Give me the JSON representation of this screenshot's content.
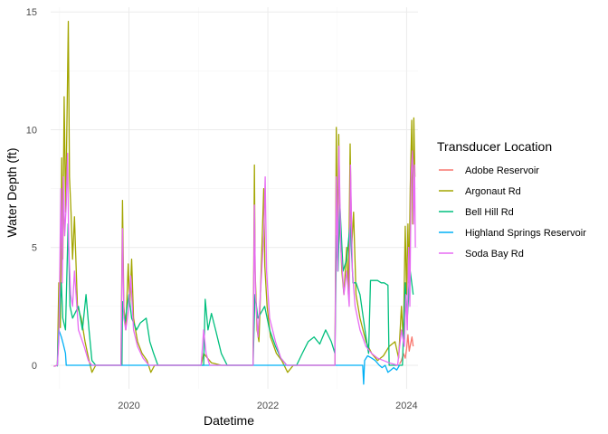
{
  "chart_data": {
    "type": "line",
    "title": "",
    "xlabel": "Datetime",
    "ylabel": "Water Depth (ft)",
    "xlim": [
      "2018-11-15",
      "2024-03-01"
    ],
    "ylim": [
      -1,
      15.2
    ],
    "x_ticks": [
      "2020-01-01",
      "2022-01-01",
      "2024-01-01"
    ],
    "x_tick_labels": [
      "2020",
      "2022",
      "2024"
    ],
    "y_ticks": [
      0,
      5,
      10,
      15
    ],
    "y_tick_labels": [
      "0",
      "5",
      "10",
      "15"
    ],
    "grid": true,
    "legend": {
      "title": "Transducer Location",
      "position": "right"
    },
    "series": [
      {
        "name": "Adobe Reservoir",
        "color": "#F8766D",
        "points": [
          [
            "2023-11-25",
            0.05
          ],
          [
            "2023-12-05",
            0.2
          ],
          [
            "2023-12-15",
            0.5
          ],
          [
            "2023-12-25",
            0.3
          ],
          [
            "2024-01-01",
            0.7
          ],
          [
            "2024-01-08",
            1.3
          ],
          [
            "2024-01-15",
            0.6
          ],
          [
            "2024-01-22",
            0.9
          ],
          [
            "2024-01-29",
            1.2
          ],
          [
            "2024-02-05",
            0.8
          ]
        ]
      },
      {
        "name": "Argonaut Rd",
        "color": "#A3A500",
        "points": [
          [
            "2018-12-01",
            -0.05
          ],
          [
            "2018-12-20",
            0.0
          ],
          [
            "2018-12-28",
            3.5
          ],
          [
            "2019-01-05",
            1.6
          ],
          [
            "2019-01-12",
            8.8
          ],
          [
            "2019-01-18",
            4.5
          ],
          [
            "2019-01-25",
            11.4
          ],
          [
            "2019-02-02",
            6.5
          ],
          [
            "2019-02-10",
            11.2
          ],
          [
            "2019-02-16",
            14.6
          ],
          [
            "2019-02-22",
            8.0
          ],
          [
            "2019-03-02",
            6.5
          ],
          [
            "2019-03-10",
            4.5
          ],
          [
            "2019-03-20",
            6.3
          ],
          [
            "2019-04-05",
            2.5
          ],
          [
            "2019-04-25",
            2.0
          ],
          [
            "2019-05-15",
            1.0
          ],
          [
            "2019-06-05",
            0.2
          ],
          [
            "2019-06-20",
            -0.3
          ],
          [
            "2019-07-10",
            0.0
          ],
          [
            "2019-11-20",
            0.0
          ],
          [
            "2019-11-28",
            7.0
          ],
          [
            "2019-12-05",
            2.5
          ],
          [
            "2019-12-15",
            1.5
          ],
          [
            "2019-12-28",
            4.3
          ],
          [
            "2020-01-05",
            2.5
          ],
          [
            "2020-01-15",
            4.5
          ],
          [
            "2020-01-25",
            2.0
          ],
          [
            "2020-02-15",
            1.0
          ],
          [
            "2020-03-10",
            0.5
          ],
          [
            "2020-04-05",
            0.2
          ],
          [
            "2020-04-25",
            -0.3
          ],
          [
            "2020-05-15",
            0.0
          ],
          [
            "2020-12-20",
            0.0
          ],
          [
            "2021-01-15",
            0.0
          ],
          [
            "2021-01-28",
            0.5
          ],
          [
            "2021-03-10",
            0.1
          ],
          [
            "2021-05-01",
            0.0
          ],
          [
            "2021-10-15",
            0.0
          ],
          [
            "2021-10-22",
            8.5
          ],
          [
            "2021-10-26",
            4.0
          ],
          [
            "2021-11-05",
            1.5
          ],
          [
            "2021-11-15",
            1.0
          ],
          [
            "2021-12-10",
            7.5
          ],
          [
            "2021-12-16",
            4.2
          ],
          [
            "2021-12-28",
            2.5
          ],
          [
            "2022-01-15",
            1.2
          ],
          [
            "2022-02-15",
            0.5
          ],
          [
            "2022-03-15",
            0.2
          ],
          [
            "2022-04-15",
            -0.3
          ],
          [
            "2022-05-15",
            0.0
          ],
          [
            "2022-12-20",
            0.0
          ],
          [
            "2022-12-27",
            10.1
          ],
          [
            "2023-01-02",
            5.0
          ],
          [
            "2023-01-09",
            9.8
          ],
          [
            "2023-01-15",
            6.0
          ],
          [
            "2023-01-25",
            4.0
          ],
          [
            "2023-02-05",
            3.0
          ],
          [
            "2023-02-20",
            5.0
          ],
          [
            "2023-03-01",
            3.0
          ],
          [
            "2023-03-10",
            9.4
          ],
          [
            "2023-03-18",
            5.0
          ],
          [
            "2023-03-28",
            6.5
          ],
          [
            "2023-04-10",
            3.0
          ],
          [
            "2023-05-01",
            2.0
          ],
          [
            "2023-06-01",
            1.0
          ],
          [
            "2023-07-01",
            0.5
          ],
          [
            "2023-08-01",
            0.2
          ],
          [
            "2023-09-01",
            0.4
          ],
          [
            "2023-10-01",
            0.8
          ],
          [
            "2023-11-01",
            1.0
          ],
          [
            "2023-11-20",
            0.3
          ],
          [
            "2023-12-05",
            2.5
          ],
          [
            "2023-12-15",
            1.0
          ],
          [
            "2023-12-25",
            5.9
          ],
          [
            "2024-01-01",
            3.0
          ],
          [
            "2024-01-08",
            6.0
          ],
          [
            "2024-01-14",
            3.5
          ],
          [
            "2024-01-20",
            7.5
          ],
          [
            "2024-01-28",
            10.4
          ],
          [
            "2024-02-02",
            6.0
          ],
          [
            "2024-02-08",
            10.5
          ],
          [
            "2024-02-14",
            8.0
          ]
        ]
      },
      {
        "name": "Bell Hill Rd",
        "color": "#00BF7D",
        "points": [
          [
            "2018-12-20",
            -0.05
          ],
          [
            "2018-12-28",
            1.5
          ],
          [
            "2019-01-10",
            3.5
          ],
          [
            "2019-01-18",
            2.0
          ],
          [
            "2019-02-01",
            1.5
          ],
          [
            "2019-02-15",
            6.0
          ],
          [
            "2019-02-25",
            2.5
          ],
          [
            "2019-03-10",
            2.0
          ],
          [
            "2019-04-10",
            2.5
          ],
          [
            "2019-05-01",
            1.5
          ],
          [
            "2019-05-20",
            3.0
          ],
          [
            "2019-06-05",
            1.5
          ],
          [
            "2019-06-20",
            0.2
          ],
          [
            "2019-07-10",
            0.0
          ],
          [
            "2019-11-25",
            0.0
          ],
          [
            "2019-11-28",
            2.7
          ],
          [
            "2019-12-10",
            1.8
          ],
          [
            "2020-01-01",
            3.0
          ],
          [
            "2020-01-15",
            2.0
          ],
          [
            "2020-02-10",
            1.5
          ],
          [
            "2020-03-01",
            1.8
          ],
          [
            "2020-04-01",
            2.0
          ],
          [
            "2020-04-20",
            1.0
          ],
          [
            "2020-05-10",
            0.5
          ],
          [
            "2020-06-01",
            0.0
          ],
          [
            "2020-12-10",
            0.0
          ],
          [
            "2021-01-28",
            0.0
          ],
          [
            "2021-02-05",
            2.8
          ],
          [
            "2021-02-20",
            1.5
          ],
          [
            "2021-03-10",
            2.2
          ],
          [
            "2021-04-01",
            1.5
          ],
          [
            "2021-05-01",
            0.5
          ],
          [
            "2021-06-01",
            0.0
          ],
          [
            "2021-10-15",
            0.0
          ],
          [
            "2021-10-25",
            3.0
          ],
          [
            "2021-11-10",
            2.0
          ],
          [
            "2021-12-15",
            2.5
          ],
          [
            "2022-01-10",
            1.5
          ],
          [
            "2022-02-10",
            0.8
          ],
          [
            "2022-03-10",
            0.3
          ],
          [
            "2022-04-10",
            0.0
          ],
          [
            "2022-06-01",
            0.0
          ],
          [
            "2022-07-01",
            0.5
          ],
          [
            "2022-08-01",
            1.0
          ],
          [
            "2022-09-01",
            1.2
          ],
          [
            "2022-10-01",
            0.9
          ],
          [
            "2022-11-01",
            1.5
          ],
          [
            "2022-12-01",
            1.0
          ],
          [
            "2022-12-20",
            0.5
          ],
          [
            "2022-12-28",
            5.5
          ],
          [
            "2023-01-05",
            4.0
          ],
          [
            "2023-01-15",
            6.8
          ],
          [
            "2023-02-01",
            4.0
          ],
          [
            "2023-02-20",
            4.5
          ],
          [
            "2023-03-10",
            6.0
          ],
          [
            "2023-03-25",
            3.5
          ],
          [
            "2023-04-10",
            3.5
          ],
          [
            "2023-05-01",
            3.0
          ],
          [
            "2023-06-01",
            1.2
          ],
          [
            "2023-06-15",
            0.5
          ],
          [
            "2023-06-25",
            3.6
          ],
          [
            "2023-07-15",
            3.6
          ],
          [
            "2023-08-01",
            3.6
          ],
          [
            "2023-08-20",
            3.5
          ],
          [
            "2023-09-05",
            3.5
          ],
          [
            "2023-09-25",
            3.4
          ],
          [
            "2023-10-01",
            0.0
          ],
          [
            "2023-12-10",
            0.0
          ],
          [
            "2023-12-25",
            3.5
          ],
          [
            "2024-01-05",
            2.0
          ],
          [
            "2024-01-20",
            4.0
          ],
          [
            "2024-02-05",
            3.0
          ]
        ]
      },
      {
        "name": "Highland Springs Reservoir",
        "color": "#00B0F6",
        "points": [
          [
            "2018-12-20",
            0.0
          ],
          [
            "2018-12-28",
            1.5
          ],
          [
            "2019-01-10",
            1.2
          ],
          [
            "2019-01-20",
            0.9
          ],
          [
            "2019-02-01",
            0.5
          ],
          [
            "2019-02-05",
            0.0
          ],
          [
            "2023-05-15",
            0.0
          ],
          [
            "2023-05-20",
            -0.8
          ],
          [
            "2023-05-25",
            0.2
          ],
          [
            "2023-06-10",
            0.4
          ],
          [
            "2023-07-01",
            0.3
          ],
          [
            "2023-07-20",
            0.2
          ],
          [
            "2023-08-10",
            0.0
          ],
          [
            "2023-08-25",
            -0.1
          ],
          [
            "2023-09-10",
            0.0
          ],
          [
            "2023-09-25",
            -0.3
          ],
          [
            "2023-10-10",
            -0.2
          ],
          [
            "2023-10-25",
            -0.1
          ],
          [
            "2023-11-10",
            -0.2
          ],
          [
            "2023-11-25",
            0.0
          ]
        ]
      },
      {
        "name": "Soda Bay Rd",
        "color": "#E76BF3",
        "points": [
          [
            "2018-12-01",
            -0.05
          ],
          [
            "2018-12-20",
            0.0
          ],
          [
            "2018-12-28",
            1.0
          ],
          [
            "2019-01-08",
            7.5
          ],
          [
            "2019-01-15",
            3.5
          ],
          [
            "2019-01-20",
            8.0
          ],
          [
            "2019-01-28",
            5.5
          ],
          [
            "2019-02-05",
            6.8
          ],
          [
            "2019-02-12",
            9.0
          ],
          [
            "2019-02-18",
            5.0
          ],
          [
            "2019-02-28",
            3.0
          ],
          [
            "2019-03-10",
            2.5
          ],
          [
            "2019-03-20",
            4.0
          ],
          [
            "2019-04-10",
            1.5
          ],
          [
            "2019-05-10",
            0.8
          ],
          [
            "2019-06-01",
            0.2
          ],
          [
            "2019-06-20",
            0.0
          ],
          [
            "2019-11-20",
            0.0
          ],
          [
            "2019-11-28",
            5.8
          ],
          [
            "2019-12-05",
            2.0
          ],
          [
            "2019-12-15",
            1.5
          ],
          [
            "2020-01-01",
            2.5
          ],
          [
            "2020-01-10",
            3.8
          ],
          [
            "2020-01-25",
            1.5
          ],
          [
            "2020-02-15",
            0.8
          ],
          [
            "2020-03-15",
            0.3
          ],
          [
            "2020-04-15",
            0.0
          ],
          [
            "2021-01-15",
            0.0
          ],
          [
            "2021-01-28",
            1.5
          ],
          [
            "2021-02-10",
            0.5
          ],
          [
            "2021-03-01",
            0.0
          ],
          [
            "2021-10-15",
            0.0
          ],
          [
            "2021-10-22",
            6.8
          ],
          [
            "2021-10-28",
            3.0
          ],
          [
            "2021-11-10",
            1.2
          ],
          [
            "2021-12-10",
            5.5
          ],
          [
            "2021-12-18",
            8.0
          ],
          [
            "2021-12-25",
            4.0
          ],
          [
            "2022-01-10",
            2.0
          ],
          [
            "2022-02-10",
            1.0
          ],
          [
            "2022-03-10",
            0.3
          ],
          [
            "2022-04-10",
            0.0
          ],
          [
            "2022-12-20",
            0.0
          ],
          [
            "2022-12-27",
            8.0
          ],
          [
            "2023-01-03",
            4.0
          ],
          [
            "2023-01-10",
            9.3
          ],
          [
            "2023-01-20",
            5.0
          ],
          [
            "2023-02-05",
            3.0
          ],
          [
            "2023-02-20",
            4.0
          ],
          [
            "2023-03-05",
            2.5
          ],
          [
            "2023-03-12",
            8.5
          ],
          [
            "2023-03-22",
            4.0
          ],
          [
            "2023-04-05",
            2.5
          ],
          [
            "2023-05-01",
            1.5
          ],
          [
            "2023-06-01",
            0.8
          ],
          [
            "2023-07-01",
            0.5
          ],
          [
            "2023-08-01",
            0.3
          ],
          [
            "2023-09-01",
            0.2
          ],
          [
            "2023-10-01",
            0.1
          ],
          [
            "2023-11-15",
            0.0
          ],
          [
            "2023-12-05",
            1.5
          ],
          [
            "2023-12-20",
            0.8
          ],
          [
            "2023-12-28",
            3.0
          ],
          [
            "2024-01-05",
            1.5
          ],
          [
            "2024-01-12",
            5.0
          ],
          [
            "2024-01-18",
            2.5
          ],
          [
            "2024-01-25",
            8.0
          ],
          [
            "2024-02-01",
            9.1
          ],
          [
            "2024-02-06",
            6.0
          ],
          [
            "2024-02-12",
            8.5
          ],
          [
            "2024-02-16",
            5.0
          ]
        ]
      }
    ]
  }
}
